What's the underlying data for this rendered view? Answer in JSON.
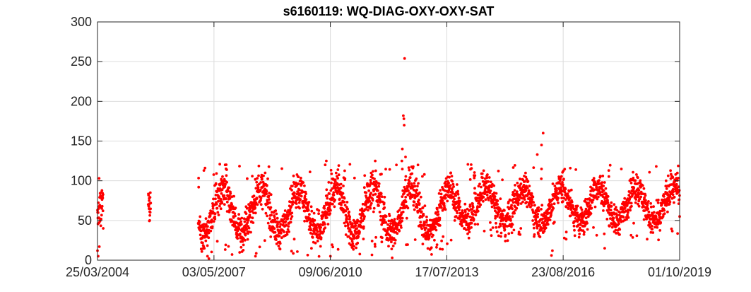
{
  "chart_data": {
    "type": "scatter",
    "title": "s6160119: WQ-DIAG-OXY-OXY-SAT",
    "xlabel": "",
    "ylabel": "",
    "x_range": [
      "25/03/2004",
      "01/10/2019"
    ],
    "ylim": [
      0,
      300
    ],
    "x_ticks": [
      "25/03/2004",
      "03/05/2007",
      "09/06/2010",
      "17/07/2013",
      "23/08/2016",
      "01/10/2019"
    ],
    "y_ticks": [
      0,
      50,
      100,
      150,
      200,
      250,
      300
    ],
    "grid": true,
    "marker_color": "#ff0000",
    "points_described": "approximate reconstruction of dense daily red dot series",
    "x_start": "2004-03-25",
    "x_end": "2019-10-01",
    "segments": [
      {
        "from": "2004-03-25",
        "to": "2004-05-20",
        "mean": 65,
        "amp": 25,
        "noise": 18
      },
      {
        "from": "2005-08-01",
        "to": "2005-08-25",
        "mean": 65,
        "amp": 10,
        "noise": 12
      },
      {
        "from": "2006-12-01",
        "to": "2013-10-15",
        "mean": 62,
        "amp": 28,
        "noise": 16
      },
      {
        "from": "2013-10-15",
        "to": "2019-10-01",
        "mean": 70,
        "amp": 22,
        "noise": 14
      }
    ],
    "outliers": [
      {
        "x": "2012-06-01",
        "y": 254
      },
      {
        "x": "2012-05-20",
        "y": 182
      },
      {
        "x": "2012-05-25",
        "y": 178
      },
      {
        "x": "2012-05-28",
        "y": 170
      },
      {
        "x": "2012-05-10",
        "y": 140
      },
      {
        "x": "2012-06-10",
        "y": 130
      },
      {
        "x": "2012-05-05",
        "y": 125
      },
      {
        "x": "2016-02-10",
        "y": 160
      },
      {
        "x": "2016-01-25",
        "y": 145
      },
      {
        "x": "2015-12-15",
        "y": 133
      },
      {
        "x": "2010-05-01",
        "y": 125
      },
      {
        "x": "2010-04-20",
        "y": 120
      },
      {
        "x": "2011-08-20",
        "y": 125
      },
      {
        "x": "2011-10-10",
        "y": 108
      },
      {
        "x": "2007-02-05",
        "y": 116
      },
      {
        "x": "2007-01-25",
        "y": 113
      },
      {
        "x": "2007-08-20",
        "y": 120
      },
      {
        "x": "2007-08-28",
        "y": 115
      },
      {
        "x": "2004-03-25",
        "y": 12
      },
      {
        "x": "2004-04-01",
        "y": 5
      },
      {
        "x": "2004-04-10",
        "y": 103
      },
      {
        "x": "2005-08-10",
        "y": 75
      },
      {
        "x": "2005-08-15",
        "y": 50
      },
      {
        "x": "2006-12-05",
        "y": 92
      },
      {
        "x": "2007-03-01",
        "y": 5
      },
      {
        "x": "2007-03-15",
        "y": 2
      },
      {
        "x": "2008-06-10",
        "y": 5
      },
      {
        "x": "2010-06-10",
        "y": 5
      },
      {
        "x": "2012-02-01",
        "y": 3
      },
      {
        "x": "2016-05-01",
        "y": 6
      },
      {
        "x": "2016-05-10",
        "y": 12
      },
      {
        "x": "2017-10-01",
        "y": 15
      },
      {
        "x": "2017-11-10",
        "y": 113
      },
      {
        "x": "2019-02-15",
        "y": 118
      },
      {
        "x": "2019-10-01",
        "y": 55
      }
    ]
  }
}
